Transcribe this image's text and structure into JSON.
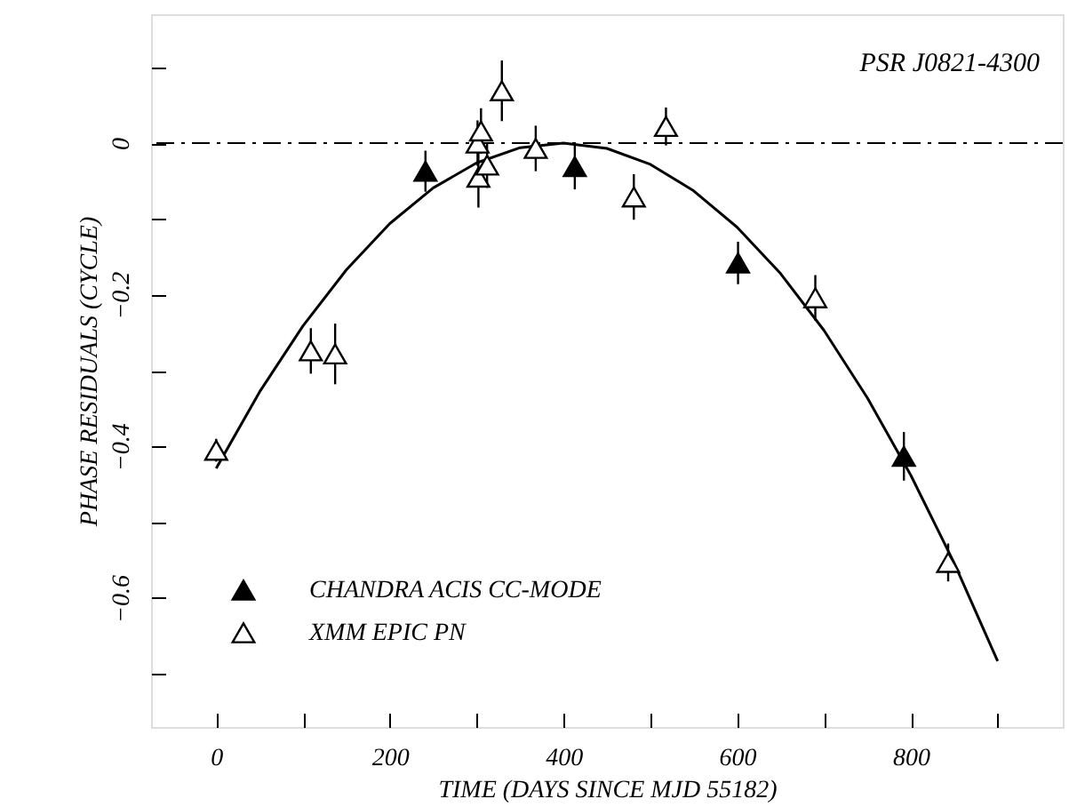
{
  "chart_data": {
    "type": "scatter",
    "xlabel": "TIME (DAYS SINCE MJD 55182)",
    "ylabel": "PHASE RESIDUALS (CYCLE)",
    "annotations": [
      "PSR J0821-4300"
    ],
    "xlim": [
      -75,
      975
    ],
    "xticks": [
      0,
      {
        "value": 100,
        "label": null
      },
      200,
      {
        "value": 300,
        "label": null
      },
      400,
      {
        "value": 500,
        "label": null
      },
      600,
      {
        "value": 700,
        "label": null
      },
      800,
      {
        "value": 900,
        "label": null
      }
    ],
    "ylim": [
      -0.77,
      0.17
    ],
    "yticks": [
      {
        "value": 0.1,
        "label": null
      },
      0,
      {
        "value": -0.1,
        "label": null
      },
      -0.2,
      {
        "value": -0.3,
        "label": null
      },
      -0.4,
      {
        "value": -0.5,
        "label": null
      },
      -0.6,
      {
        "value": -0.7,
        "label": null
      }
    ],
    "grid": false,
    "legend": "bottom left",
    "ref_lines": [
      {
        "axis": "y",
        "value": 0,
        "color": "#000000",
        "line_style": "dashed"
      }
    ],
    "series": [
      {
        "name": "CHANDRA ACIS CC-MODE",
        "color": "#000000",
        "marker": "triangle",
        "x": [
          241,
          413,
          601,
          792
        ],
        "values": [
          -0.037,
          -0.031,
          -0.158,
          -0.413
        ],
        "errors": [
          0.027,
          0.03,
          0.028,
          0.032
        ]
      },
      {
        "name": "XMM EPIC PN",
        "color": "#ffffff",
        "marker": "triangle",
        "x": [
          0,
          109,
          137,
          301,
          302,
          305,
          312,
          329,
          368,
          481,
          518,
          690,
          843
        ],
        "values": [
          -0.405,
          -0.274,
          -0.278,
          0.0,
          -0.045,
          0.016,
          -0.029,
          0.069,
          -0.007,
          -0.071,
          0.022,
          -0.204,
          -0.553
        ],
        "errors": [
          0.015,
          0.03,
          0.04,
          0.03,
          0.04,
          0.03,
          0.03,
          0.04,
          0.03,
          0.03,
          0.025,
          0.03,
          0.025
        ]
      },
      {
        "type": "line",
        "marker": "none",
        "color": "#000000",
        "x": [
          0,
          50,
          100,
          150,
          200,
          250,
          300,
          350,
          400,
          450,
          500,
          550,
          600,
          650,
          700,
          750,
          800,
          850,
          900
        ],
        "values": [
          -0.429,
          -0.328,
          -0.241,
          -0.167,
          -0.106,
          -0.059,
          -0.026,
          -0.006,
          0,
          -0.007,
          -0.028,
          -0.063,
          -0.111,
          -0.172,
          -0.247,
          -0.336,
          -0.438,
          -0.554,
          -0.683
        ]
      }
    ]
  }
}
